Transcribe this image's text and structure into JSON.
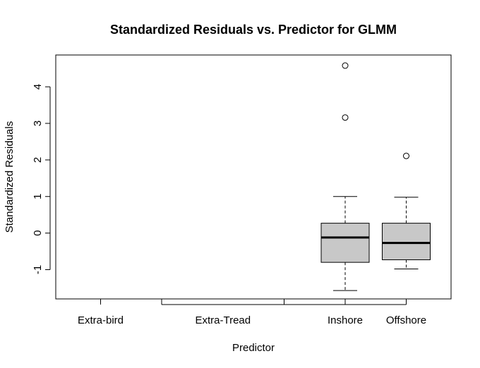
{
  "chart_data": {
    "type": "boxplot",
    "title": "Standardized Residuals vs. Predictor for GLMM",
    "xlabel": "Predictor",
    "ylabel": "Standardized Residuals",
    "categories": [
      "Extra-bird",
      "Extra-Tread",
      "Inshore",
      "Offshore"
    ],
    "y_ticks": [
      -1,
      0,
      1,
      2,
      3,
      4
    ],
    "y_tick_labels": [
      "-1",
      "0",
      "1",
      "2",
      "3",
      "4"
    ],
    "ylim": [
      -1.8,
      4.87
    ],
    "grid": false,
    "legend": "none",
    "boxes": [
      {
        "category": "Extra-bird",
        "empty": true
      },
      {
        "category": "Extra-Tread",
        "empty": true
      },
      {
        "category": "Inshore",
        "whisker_low": -1.57,
        "q1": -0.8,
        "median": -0.12,
        "q3": 0.27,
        "whisker_high": 1.0,
        "outliers": [
          3.16,
          4.58
        ]
      },
      {
        "category": "Offshore",
        "whisker_low": -0.98,
        "q1": -0.73,
        "median": -0.27,
        "q3": 0.27,
        "whisker_high": 0.98,
        "outliers": [
          2.11
        ]
      }
    ],
    "box_fill": "#c8c8c8",
    "line_color": "#000000"
  }
}
